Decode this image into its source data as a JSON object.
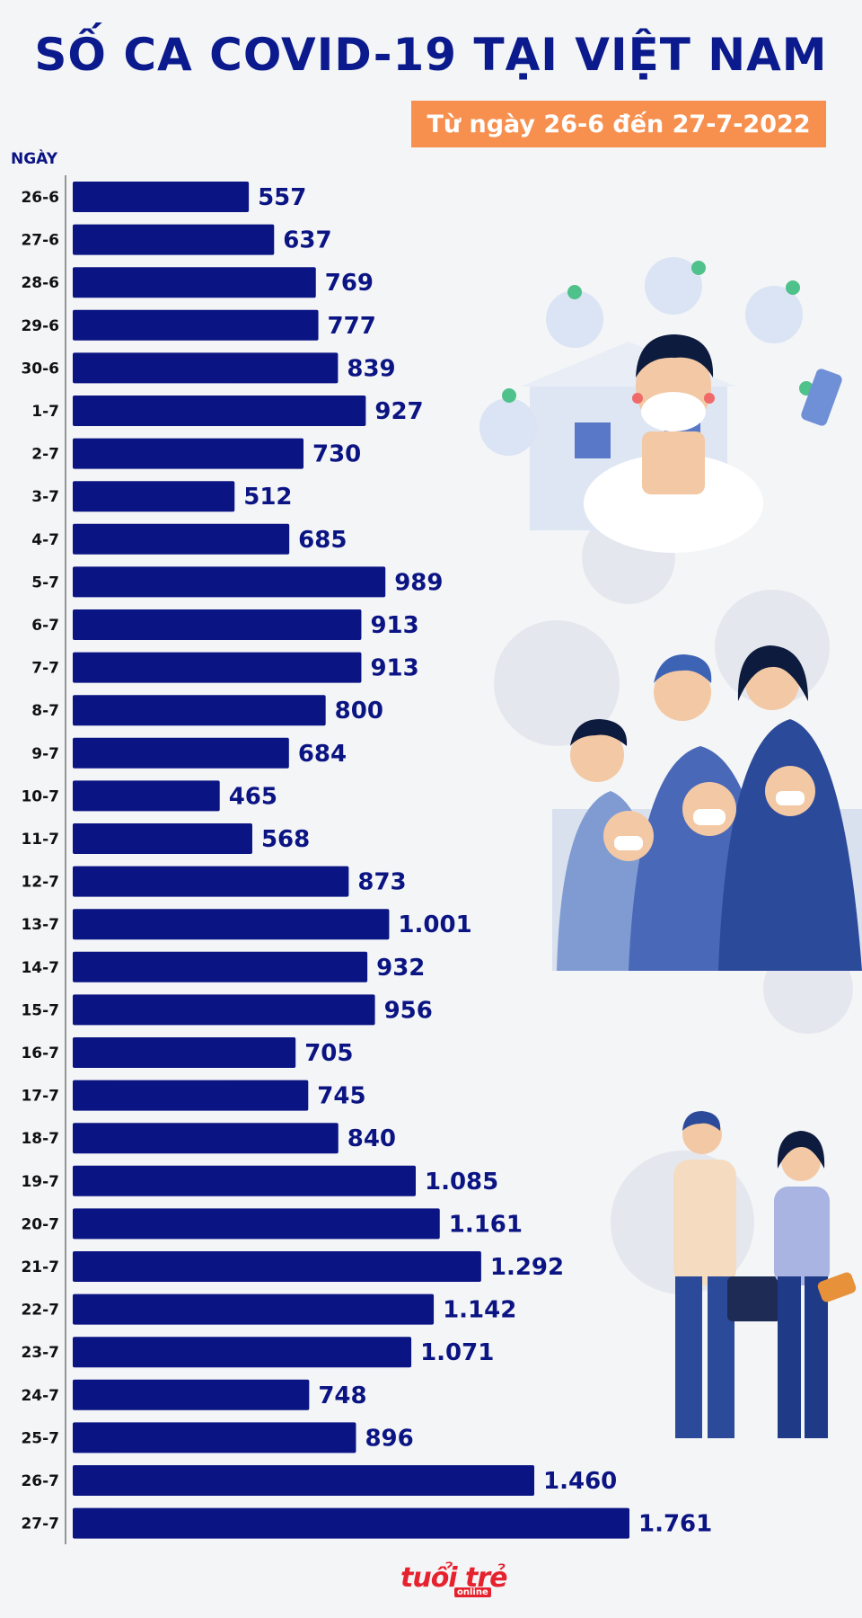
{
  "chart_data": {
    "type": "bar",
    "orientation": "horizontal",
    "title": "SỐ CA COVID-19 TẠI VIỆT NAM",
    "subtitle": "Từ ngày 26-6 đến 27-7-2022",
    "ylabel": "NGÀY",
    "xlabel": "",
    "grid": false,
    "legend": "none",
    "bar_color": "#0b1483",
    "categories": [
      "26-6",
      "27-6",
      "28-6",
      "29-6",
      "30-6",
      "1-7",
      "2-7",
      "3-7",
      "4-7",
      "5-7",
      "6-7",
      "7-7",
      "8-7",
      "9-7",
      "10-7",
      "11-7",
      "12-7",
      "13-7",
      "14-7",
      "15-7",
      "16-7",
      "17-7",
      "18-7",
      "19-7",
      "20-7",
      "21-7",
      "22-7",
      "23-7",
      "24-7",
      "25-7",
      "26-7",
      "27-7"
    ],
    "values": [
      557,
      637,
      769,
      777,
      839,
      927,
      730,
      512,
      685,
      989,
      913,
      913,
      800,
      684,
      465,
      568,
      873,
      1001,
      932,
      956,
      705,
      745,
      840,
      1085,
      1161,
      1292,
      1142,
      1071,
      748,
      896,
      1460,
      1761
    ],
    "value_labels": [
      "557",
      "637",
      "769",
      "777",
      "839",
      "927",
      "730",
      "512",
      "685",
      "989",
      "913",
      "913",
      "800",
      "684",
      "465",
      "568",
      "873",
      "1.001",
      "932",
      "956",
      "705",
      "745",
      "840",
      "1.085",
      "1.161",
      "1.292",
      "1.142",
      "1.071",
      "748",
      "896",
      "1.460",
      "1.761"
    ],
    "xlim": [
      0,
      1761
    ]
  },
  "branding": {
    "logo_text": "tuổi trẻ",
    "logo_sub": "online",
    "accent_color": "#f7904f",
    "title_color": "#0b1a8c",
    "logo_color": "#e5222d"
  }
}
